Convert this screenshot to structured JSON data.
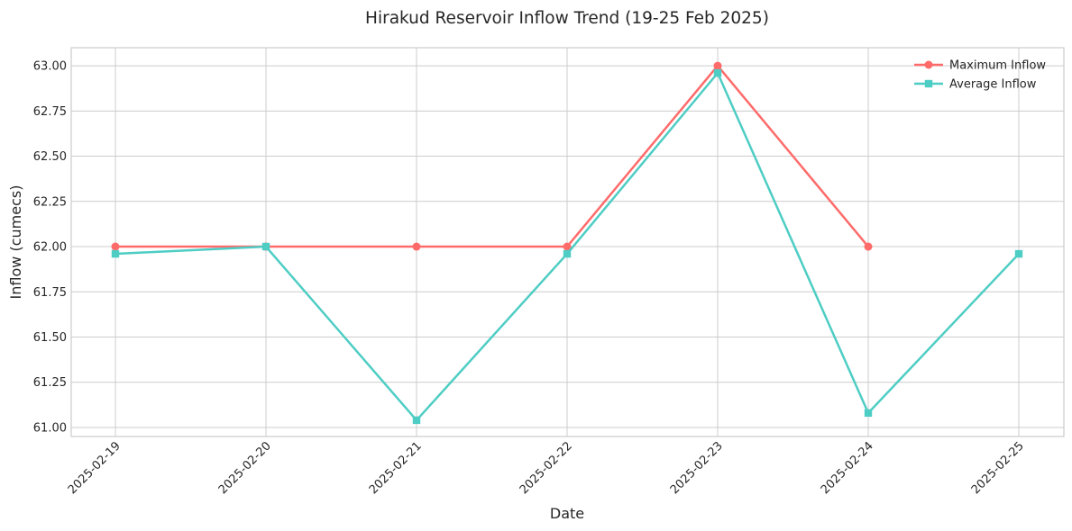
{
  "chart_data": {
    "type": "line",
    "title": "Hirakud Reservoir Inflow Trend (19-25 Feb 2025)",
    "xlabel": "Date",
    "ylabel": "Inflow (cumecs)",
    "x": [
      "2025-02-19",
      "2025-02-20",
      "2025-02-21",
      "2025-02-22",
      "2025-02-23",
      "2025-02-24",
      "2025-02-25"
    ],
    "ylim": [
      60.95,
      63.1
    ],
    "yticks": [
      "61.00",
      "61.25",
      "61.50",
      "61.75",
      "62.00",
      "62.25",
      "62.50",
      "62.75",
      "63.00"
    ],
    "grid": true,
    "legend_position": "top-right",
    "series": [
      {
        "name": "Maximum Inflow",
        "color": "#ff6b6b",
        "marker": "circle",
        "values": [
          62.0,
          62.0,
          62.0,
          62.0,
          63.0,
          62.0,
          null
        ]
      },
      {
        "name": "Average Inflow",
        "color": "#4ecdc4",
        "marker": "square",
        "values": [
          61.96,
          62.0,
          61.04,
          61.96,
          62.96,
          61.08,
          61.96
        ]
      }
    ]
  }
}
